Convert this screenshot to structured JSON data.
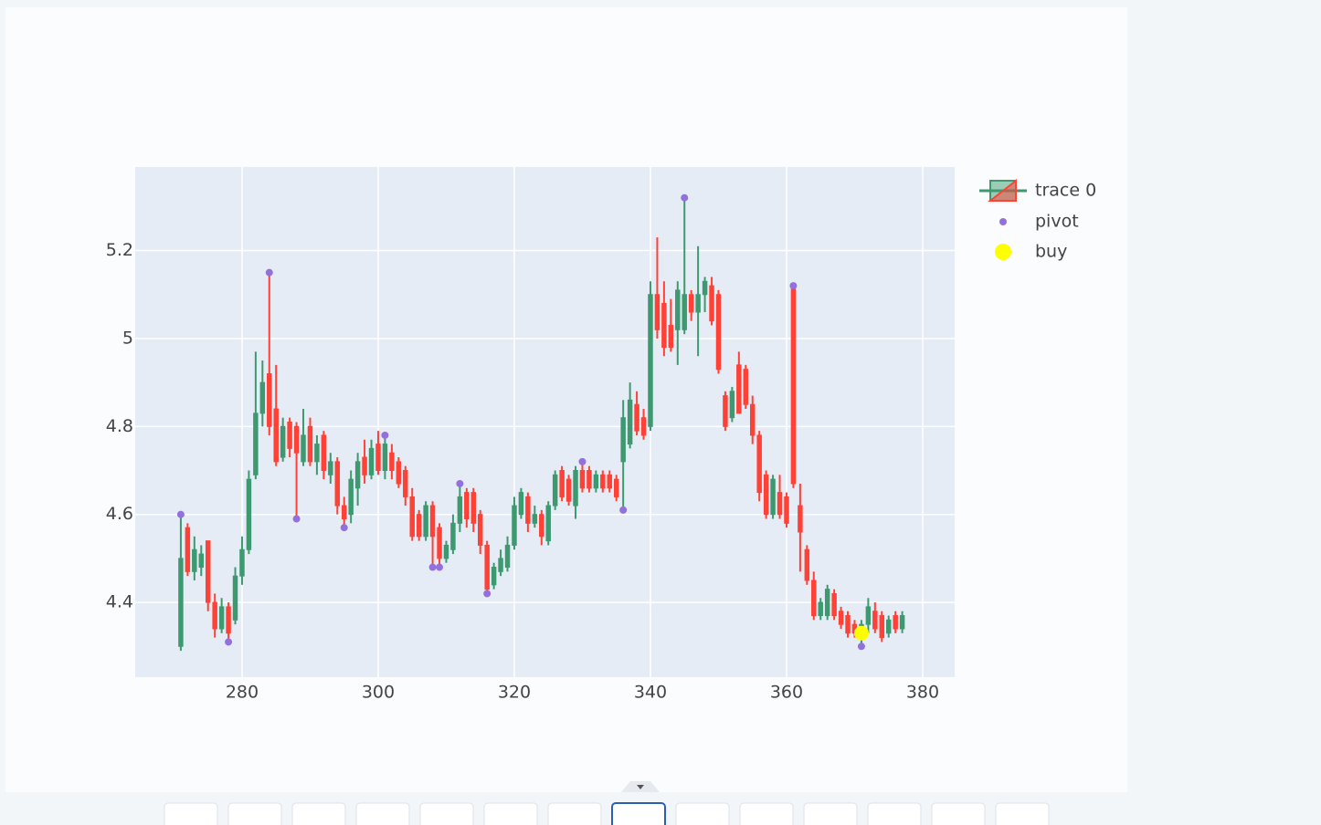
{
  "chart_data": {
    "type": "candlestick",
    "xlim": [
      264.3,
      384.7
    ],
    "ylim": [
      4.23,
      5.39
    ],
    "xticks": [
      280,
      300,
      320,
      340,
      360,
      380
    ],
    "yticks": [
      4.4,
      4.6,
      4.8,
      5,
      5.2
    ],
    "grid": true,
    "candles": {
      "name": "trace 0",
      "increasing_color": "#3d9970",
      "decreasing_color": "#ff4136",
      "x": [
        271,
        272,
        273,
        274,
        275,
        276,
        277,
        278,
        279,
        280,
        281,
        282,
        283,
        284,
        285,
        286,
        287,
        288,
        289,
        290,
        291,
        292,
        293,
        294,
        295,
        296,
        297,
        298,
        299,
        300,
        301,
        302,
        303,
        304,
        305,
        306,
        307,
        308,
        309,
        310,
        311,
        312,
        313,
        314,
        315,
        316,
        317,
        318,
        319,
        320,
        321,
        322,
        323,
        324,
        325,
        326,
        327,
        328,
        329,
        330,
        331,
        332,
        333,
        334,
        335,
        336,
        337,
        338,
        339,
        340,
        341,
        342,
        343,
        344,
        345,
        346,
        347,
        348,
        349,
        350,
        351,
        352,
        353,
        354,
        355,
        356,
        357,
        358,
        359,
        360,
        361,
        362,
        363,
        364,
        365,
        366,
        367,
        368,
        369,
        370,
        371,
        372,
        373,
        374,
        375,
        376,
        377
      ],
      "open": [
        4.3,
        4.57,
        4.47,
        4.48,
        4.54,
        4.4,
        4.34,
        4.39,
        4.36,
        4.46,
        4.52,
        4.69,
        4.83,
        4.92,
        4.84,
        4.73,
        4.81,
        4.8,
        4.72,
        4.8,
        4.72,
        4.78,
        4.69,
        4.72,
        4.62,
        4.6,
        4.66,
        4.73,
        4.69,
        4.76,
        4.7,
        4.74,
        4.72,
        4.7,
        4.64,
        4.6,
        4.55,
        4.62,
        4.57,
        4.5,
        4.52,
        4.58,
        4.65,
        4.65,
        4.6,
        4.53,
        4.44,
        4.47,
        4.48,
        4.53,
        4.6,
        4.64,
        4.58,
        4.6,
        4.54,
        4.62,
        4.7,
        4.68,
        4.62,
        4.7,
        4.7,
        4.66,
        4.69,
        4.69,
        4.68,
        4.72,
        4.76,
        4.85,
        4.82,
        4.8,
        5.1,
        5.08,
        5.03,
        5.02,
        5.02,
        5.1,
        5.06,
        5.1,
        5.12,
        5.1,
        4.87,
        4.82,
        4.94,
        4.93,
        4.85,
        4.78,
        4.69,
        4.6,
        4.65,
        4.64,
        5.12,
        4.62,
        4.52,
        4.45,
        4.37,
        4.37,
        4.42,
        4.38,
        4.37,
        4.35,
        4.33,
        4.35,
        4.38,
        4.37,
        4.33,
        4.37,
        4.34
      ],
      "high": [
        4.6,
        4.58,
        4.55,
        4.53,
        4.54,
        4.42,
        4.41,
        4.4,
        4.48,
        4.55,
        4.7,
        4.97,
        4.95,
        5.15,
        4.94,
        4.82,
        4.82,
        4.81,
        4.84,
        4.82,
        4.78,
        4.79,
        4.74,
        4.73,
        4.64,
        4.7,
        4.74,
        4.77,
        4.77,
        4.79,
        4.78,
        4.76,
        4.73,
        4.71,
        4.66,
        4.61,
        4.63,
        4.63,
        4.58,
        4.54,
        4.6,
        4.67,
        4.66,
        4.66,
        4.61,
        4.54,
        4.49,
        4.52,
        4.55,
        4.64,
        4.66,
        4.65,
        4.62,
        4.61,
        4.63,
        4.7,
        4.71,
        4.69,
        4.71,
        4.72,
        4.71,
        4.7,
        4.7,
        4.7,
        4.69,
        4.86,
        4.9,
        4.88,
        4.84,
        5.13,
        5.23,
        5.13,
        5.09,
        5.13,
        5.32,
        5.11,
        5.21,
        5.14,
        5.14,
        5.11,
        4.88,
        4.89,
        4.97,
        4.94,
        4.87,
        4.79,
        4.7,
        4.69,
        4.69,
        4.65,
        5.12,
        4.67,
        4.53,
        4.47,
        4.41,
        4.44,
        4.43,
        4.39,
        4.38,
        4.36,
        4.36,
        4.41,
        4.4,
        4.38,
        4.37,
        4.38,
        4.38
      ],
      "low": [
        4.29,
        4.46,
        4.45,
        4.46,
        4.38,
        4.32,
        4.33,
        4.31,
        4.35,
        4.44,
        4.51,
        4.68,
        4.8,
        4.78,
        4.71,
        4.72,
        4.73,
        4.59,
        4.71,
        4.71,
        4.69,
        4.68,
        4.67,
        4.6,
        4.57,
        4.58,
        4.62,
        4.67,
        4.68,
        4.69,
        4.68,
        4.68,
        4.66,
        4.62,
        4.54,
        4.54,
        4.54,
        4.48,
        4.48,
        4.49,
        4.51,
        4.56,
        4.57,
        4.56,
        4.51,
        4.42,
        4.43,
        4.46,
        4.47,
        4.52,
        4.59,
        4.56,
        4.57,
        4.53,
        4.53,
        4.61,
        4.63,
        4.62,
        4.59,
        4.65,
        4.65,
        4.65,
        4.65,
        4.65,
        4.63,
        4.61,
        4.75,
        4.78,
        4.77,
        4.79,
        5.0,
        4.96,
        4.97,
        4.94,
        5.01,
        5.04,
        4.96,
        5.06,
        5.03,
        4.92,
        4.79,
        4.81,
        4.83,
        4.84,
        4.76,
        4.63,
        4.59,
        4.59,
        4.59,
        4.57,
        4.66,
        4.47,
        4.44,
        4.36,
        4.36,
        4.36,
        4.36,
        4.34,
        4.32,
        4.32,
        4.3,
        4.33,
        4.33,
        4.31,
        4.32,
        4.33,
        4.33
      ],
      "close": [
        4.5,
        4.47,
        4.52,
        4.51,
        4.4,
        4.34,
        4.39,
        4.33,
        4.46,
        4.52,
        4.68,
        4.83,
        4.9,
        4.8,
        4.72,
        4.8,
        4.75,
        4.74,
        4.78,
        4.72,
        4.76,
        4.7,
        4.72,
        4.62,
        4.59,
        4.68,
        4.72,
        4.69,
        4.75,
        4.7,
        4.76,
        4.7,
        4.67,
        4.64,
        4.55,
        4.55,
        4.62,
        4.55,
        4.5,
        4.53,
        4.58,
        4.64,
        4.59,
        4.58,
        4.53,
        4.43,
        4.48,
        4.5,
        4.53,
        4.62,
        4.65,
        4.58,
        4.6,
        4.55,
        4.62,
        4.69,
        4.64,
        4.63,
        4.7,
        4.66,
        4.66,
        4.69,
        4.66,
        4.66,
        4.64,
        4.82,
        4.86,
        4.79,
        4.78,
        5.1,
        5.02,
        4.98,
        4.98,
        5.11,
        5.1,
        5.06,
        5.1,
        5.13,
        5.04,
        4.93,
        4.8,
        4.88,
        4.83,
        4.85,
        4.78,
        4.65,
        4.6,
        4.68,
        4.6,
        4.58,
        4.67,
        4.56,
        4.45,
        4.37,
        4.4,
        4.43,
        4.37,
        4.35,
        4.33,
        4.33,
        4.35,
        4.39,
        4.34,
        4.32,
        4.36,
        4.34,
        4.37
      ]
    },
    "markers": [
      {
        "name": "pivot",
        "color": "#9370db",
        "x": [
          271,
          278,
          284,
          288,
          295,
          301,
          308,
          309,
          312,
          316,
          330,
          336,
          345,
          361,
          371
        ],
        "y": [
          4.6,
          4.31,
          5.15,
          4.59,
          4.57,
          4.78,
          4.48,
          4.48,
          4.67,
          4.42,
          4.72,
          4.61,
          5.32,
          5.12,
          4.3
        ]
      },
      {
        "name": "buy",
        "color": "#ffff00",
        "x": [
          371
        ],
        "y": [
          4.33
        ]
      }
    ]
  }
}
